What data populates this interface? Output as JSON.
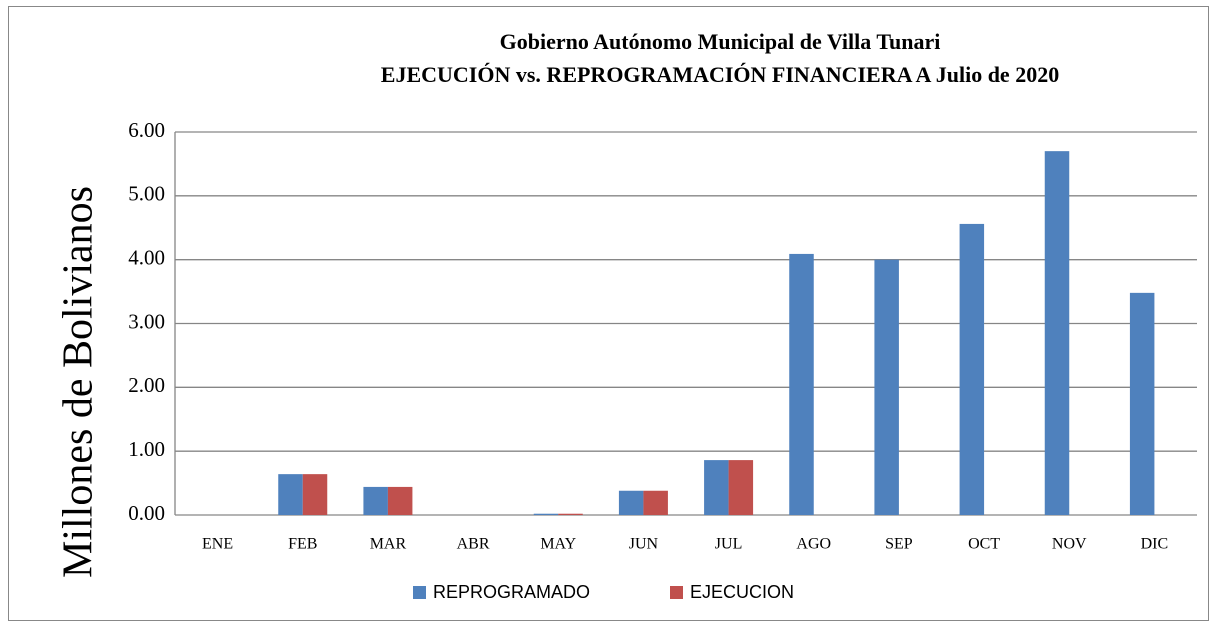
{
  "chart_data": {
    "type": "bar",
    "title": "Gobierno Autónomo Municipal de Villa Tunari",
    "subtitle": "EJECUCIÓN vs. REPROGRAMACIÓN FINANCIERA A Julio de 2020",
    "y_label": "Millones de Bolivianos",
    "categories": [
      "ENE",
      "FEB",
      "MAR",
      "ABR",
      "MAY",
      "JUN",
      "JUL",
      "AGO",
      "SEP",
      "OCT",
      "NOV",
      "DIC"
    ],
    "series": [
      {
        "name": "REPROGRAMADO",
        "color": "#4f81bd",
        "values": [
          0,
          0.64,
          0.44,
          0,
          0.02,
          0.38,
          0.86,
          4.09,
          4.0,
          4.56,
          5.7,
          3.48
        ]
      },
      {
        "name": "EJECUCION",
        "color": "#c0504d",
        "values": [
          0,
          0.64,
          0.44,
          0,
          0.02,
          0.38,
          0.86,
          null,
          null,
          null,
          null,
          null
        ]
      }
    ],
    "ylim": [
      0,
      6
    ],
    "yticks": [
      {
        "value": 0,
        "label": "0.00"
      },
      {
        "value": 1,
        "label": "1.00"
      },
      {
        "value": 2,
        "label": "2.00"
      },
      {
        "value": 3,
        "label": "3.00"
      },
      {
        "value": 4,
        "label": "4.00"
      },
      {
        "value": 5,
        "label": "5.00"
      },
      {
        "value": 6,
        "label": "6.00"
      }
    ],
    "grid": true,
    "legend": "bottom"
  }
}
